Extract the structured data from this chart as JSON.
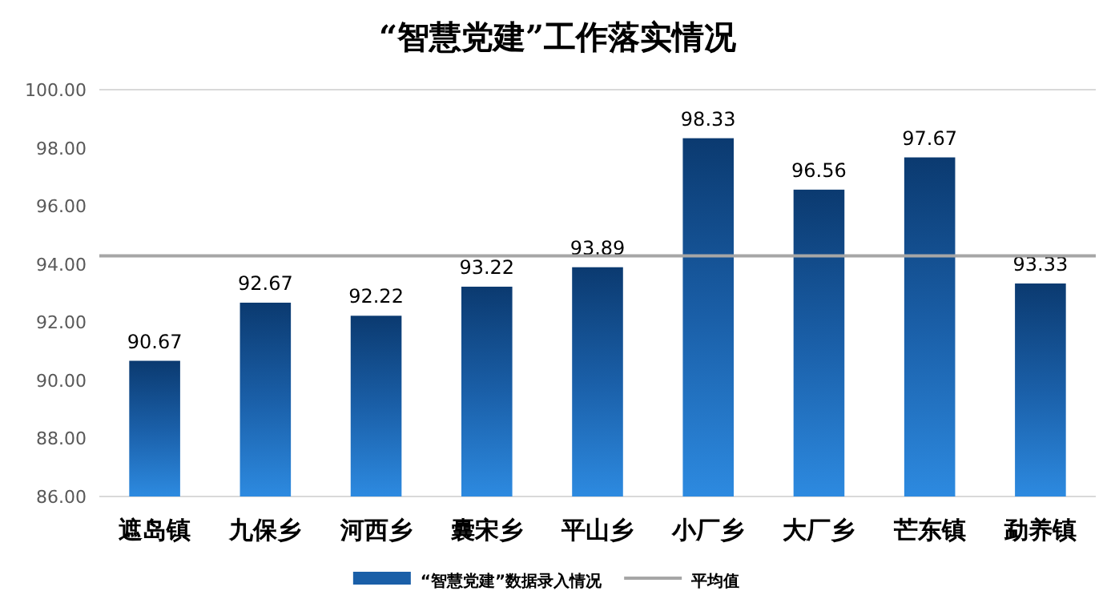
{
  "chart_data": {
    "type": "bar",
    "title": "“智慧党建”工作落实情况",
    "categories": [
      "遮岛镇",
      "九保乡",
      "河西乡",
      "囊宋乡",
      "平山乡",
      "小厂乡",
      "大厂乡",
      "芒东镇",
      "勐养镇"
    ],
    "series": [
      {
        "name": "“智慧党建”数据录入情况",
        "color": "#1a5fa8",
        "values": [
          90.67,
          92.67,
          92.22,
          93.22,
          93.89,
          98.33,
          96.56,
          97.67,
          93.33
        ]
      }
    ],
    "ylim": [
      86,
      100
    ],
    "yticks": [
      {
        "value": 86,
        "label": "86.00"
      },
      {
        "value": 88,
        "label": "88.00"
      },
      {
        "value": 90,
        "label": "90.00"
      },
      {
        "value": 92,
        "label": "92.00"
      },
      {
        "value": 94,
        "label": "94.00"
      },
      {
        "value": 96,
        "label": "96.00"
      },
      {
        "value": 98,
        "label": "98.00"
      },
      {
        "value": 100,
        "label": "100.00"
      }
    ],
    "ref_lines": [
      {
        "axis": "y",
        "value": 94.28,
        "label": "平均值",
        "color": "#a6a6a6"
      }
    ],
    "data_labels": true,
    "legend": "bottom"
  }
}
